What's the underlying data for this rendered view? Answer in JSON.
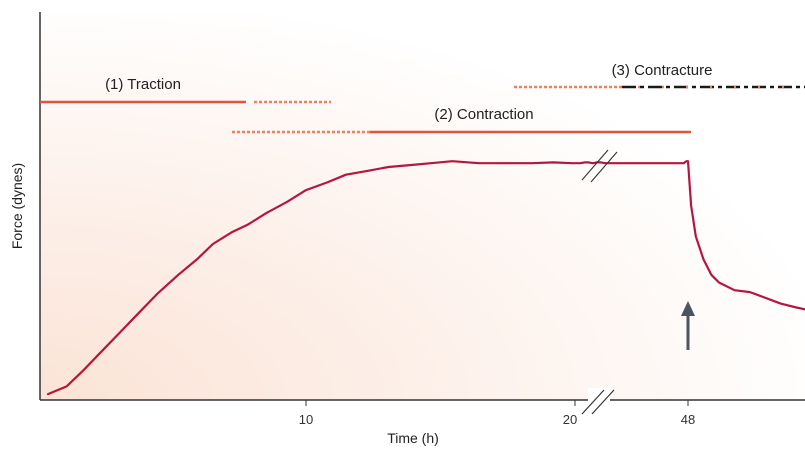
{
  "chart_data": {
    "type": "line",
    "title": "",
    "xlabel": "Time (h)",
    "ylabel": "Force (dynes)",
    "x_ticks": [
      "10",
      "20",
      "48"
    ],
    "axis_break_note": "x-axis broken between 20 and 48 h",
    "colors": {
      "curve": "#b5163f",
      "phase": "#e2543a",
      "phase_dotted": "#ee8060",
      "phase_dark": "#1a1a1a",
      "axis": "#333333",
      "arrow": "#4a5560",
      "bg_warm": "#fbe3d6"
    },
    "phases": [
      {
        "label": "(1) Traction"
      },
      {
        "label": "(2) Contraction"
      },
      {
        "label": "(3) Contracture"
      }
    ],
    "series": [
      {
        "values_note": "relative force (0 = bottom of axis, 1 = top of plot)",
        "points": [
          [
            0.3,
            0.01
          ],
          [
            1.0,
            0.03
          ],
          [
            1.6,
            0.07
          ],
          [
            2.3,
            0.12
          ],
          [
            3.0,
            0.17
          ],
          [
            3.7,
            0.22
          ],
          [
            4.4,
            0.27
          ],
          [
            5.2,
            0.32
          ],
          [
            5.9,
            0.36
          ],
          [
            6.5,
            0.4
          ],
          [
            7.2,
            0.43
          ],
          [
            7.8,
            0.45
          ],
          [
            8.5,
            0.48
          ],
          [
            9.3,
            0.51
          ],
          [
            10.0,
            0.54
          ],
          [
            10.8,
            0.56
          ],
          [
            11.5,
            0.58
          ],
          [
            12.3,
            0.59
          ],
          [
            13.1,
            0.6
          ],
          [
            13.9,
            0.605
          ],
          [
            14.7,
            0.61
          ],
          [
            15.5,
            0.615
          ],
          [
            16.5,
            0.61
          ],
          [
            17.5,
            0.61
          ],
          [
            18.5,
            0.61
          ],
          [
            19.3,
            0.612
          ],
          [
            20.0,
            0.61
          ],
          [
            21.0,
            0.61
          ],
          [
            22.0,
            0.61
          ],
          [
            23.0,
            0.612
          ],
          [
            24.0,
            0.612
          ],
          [
            25.0,
            0.61
          ],
          [
            26.0,
            0.612
          ],
          [
            27.0,
            0.612
          ],
          [
            28.0,
            0.61
          ],
          [
            29.0,
            0.61
          ],
          [
            30.0,
            0.61
          ],
          [
            31.0,
            0.61
          ],
          [
            32.0,
            0.61
          ],
          [
            33.0,
            0.61
          ],
          [
            34.0,
            0.61
          ],
          [
            35.0,
            0.61
          ],
          [
            36.0,
            0.61
          ],
          [
            37.0,
            0.61
          ],
          [
            38.0,
            0.61
          ],
          [
            39.0,
            0.61
          ],
          [
            40.0,
            0.61
          ],
          [
            41.0,
            0.61
          ],
          [
            42.0,
            0.61
          ],
          [
            43.0,
            0.61
          ],
          [
            44.0,
            0.61
          ],
          [
            45.0,
            0.61
          ],
          [
            46.0,
            0.61
          ],
          [
            47.0,
            0.61
          ],
          [
            47.6,
            0.615
          ],
          [
            48.0,
            0.615
          ],
          [
            48.2,
            0.5
          ],
          [
            48.5,
            0.42
          ],
          [
            49.0,
            0.36
          ],
          [
            49.5,
            0.32
          ],
          [
            50.0,
            0.3
          ],
          [
            51.0,
            0.28
          ],
          [
            52.0,
            0.275
          ],
          [
            53.0,
            0.26
          ],
          [
            54.0,
            0.245
          ],
          [
            55.0,
            0.235
          ],
          [
            55.8,
            0.228
          ]
        ]
      }
    ]
  }
}
